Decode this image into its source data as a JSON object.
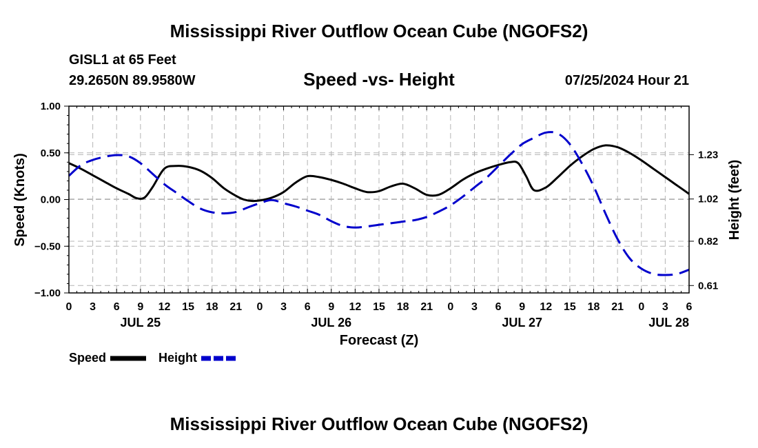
{
  "header": {
    "title": "Mississippi River Outflow Ocean Cube (NGOFS2)",
    "station": "GISL1 at 65 Feet",
    "coords": "29.2650N  89.9580W",
    "subtitle": "Speed -vs- Height",
    "datetime": "07/25/2024 Hour 21"
  },
  "footer": {
    "title": "Mississippi River Outflow Ocean Cube (NGOFS2)"
  },
  "chart_data": {
    "type": "line",
    "title": "Speed -vs- Height",
    "xlabel": "Forecast (Z)",
    "ylabel_left": "Speed (Knots)",
    "ylabel_right": "Height (feet)",
    "xlim": [
      0,
      78
    ],
    "ylim_left": [
      -1.0,
      1.0
    ],
    "ylim_right": [
      0.575,
      1.46
    ],
    "left_ticks": [
      {
        "v": 1.0,
        "label": "1.00"
      },
      {
        "v": 0.5,
        "label": "0.50"
      },
      {
        "v": 0.0,
        "label": "0.00"
      },
      {
        "v": -0.5,
        "label": "−0.50"
      },
      {
        "v": -1.0,
        "label": "−1.00"
      }
    ],
    "right_ticks": [
      {
        "v": 1.23,
        "label": "1.23"
      },
      {
        "v": 1.02,
        "label": "1.02"
      },
      {
        "v": 0.82,
        "label": "0.82"
      },
      {
        "v": 0.61,
        "label": "0.61"
      }
    ],
    "hour_ticks": [
      "0",
      "3",
      "6",
      "9",
      "12",
      "15",
      "18",
      "21",
      "0",
      "3",
      "6",
      "9",
      "12",
      "15",
      "18",
      "21",
      "0",
      "3",
      "6",
      "9",
      "12",
      "15",
      "18",
      "21",
      "0",
      "3",
      "6"
    ],
    "day_labels": [
      {
        "x": 9,
        "label": "JUL 25"
      },
      {
        "x": 33,
        "label": "JUL 26"
      },
      {
        "x": 57,
        "label": "JUL 27"
      },
      {
        "x": 78,
        "label": "JUL 28"
      }
    ],
    "series": [
      {
        "name": "Speed",
        "axis": "left",
        "color": "#000000",
        "dash": "solid",
        "x": [
          0,
          1.5,
          3,
          4.5,
          6,
          7.5,
          8.5,
          9.5,
          10.5,
          12,
          13.5,
          15,
          16.5,
          18,
          19.5,
          21,
          22,
          23,
          24,
          25.5,
          27,
          28.5,
          30,
          31.5,
          33,
          34.5,
          36,
          37.5,
          39,
          40.5,
          42,
          43.5,
          45,
          46.5,
          48,
          49.5,
          51,
          52.5,
          54,
          55.5,
          56.5,
          57.5,
          58.5,
          60,
          61.5,
          63,
          64.5,
          66,
          67.5,
          69,
          70.5,
          72,
          73.5,
          75,
          76.5,
          78
        ],
        "values": [
          0.39,
          0.33,
          0.26,
          0.19,
          0.12,
          0.06,
          0.015,
          0.02,
          0.13,
          0.33,
          0.36,
          0.35,
          0.31,
          0.23,
          0.12,
          0.04,
          0.0,
          -0.015,
          -0.01,
          0.02,
          0.08,
          0.18,
          0.25,
          0.24,
          0.21,
          0.17,
          0.12,
          0.08,
          0.09,
          0.14,
          0.17,
          0.12,
          0.05,
          0.05,
          0.12,
          0.21,
          0.28,
          0.33,
          0.37,
          0.4,
          0.39,
          0.25,
          0.1,
          0.13,
          0.24,
          0.36,
          0.46,
          0.54,
          0.58,
          0.56,
          0.5,
          0.42,
          0.33,
          0.24,
          0.15,
          0.06
        ]
      },
      {
        "name": "Height",
        "axis": "right",
        "color": "#0000cc",
        "dash": "dashed",
        "x": [
          0,
          1.5,
          3,
          4.5,
          6,
          7.5,
          9,
          10.5,
          12,
          13.5,
          15,
          16.5,
          18,
          19.5,
          21,
          22.5,
          24,
          25.5,
          27,
          28.5,
          30,
          31.5,
          33,
          34.5,
          36,
          37.5,
          39,
          40.5,
          42,
          43.5,
          45,
          46.5,
          48,
          49.5,
          51,
          52.5,
          54,
          55.5,
          57,
          58.5,
          60,
          61.5,
          63,
          64.5,
          66,
          67.5,
          69,
          70.5,
          72,
          73.5,
          75,
          76.5,
          78
        ],
        "values": [
          1.13,
          1.18,
          1.205,
          1.22,
          1.228,
          1.222,
          1.19,
          1.14,
          1.09,
          1.05,
          1.01,
          0.975,
          0.957,
          0.952,
          0.958,
          0.98,
          1.0,
          1.015,
          1.0,
          0.985,
          0.965,
          0.945,
          0.915,
          0.892,
          0.885,
          0.89,
          0.898,
          0.905,
          0.913,
          0.92,
          0.935,
          0.96,
          0.99,
          1.03,
          1.075,
          1.12,
          1.175,
          1.23,
          1.28,
          1.31,
          1.335,
          1.33,
          1.28,
          1.19,
          1.08,
          0.95,
          0.83,
          0.74,
          0.69,
          0.665,
          0.66,
          0.665,
          0.685
        ]
      }
    ],
    "legend": [
      {
        "label": "Speed",
        "color": "#000000",
        "dash": "solid"
      },
      {
        "label": "Height",
        "color": "#0000cc",
        "dash": "dashed"
      }
    ]
  }
}
